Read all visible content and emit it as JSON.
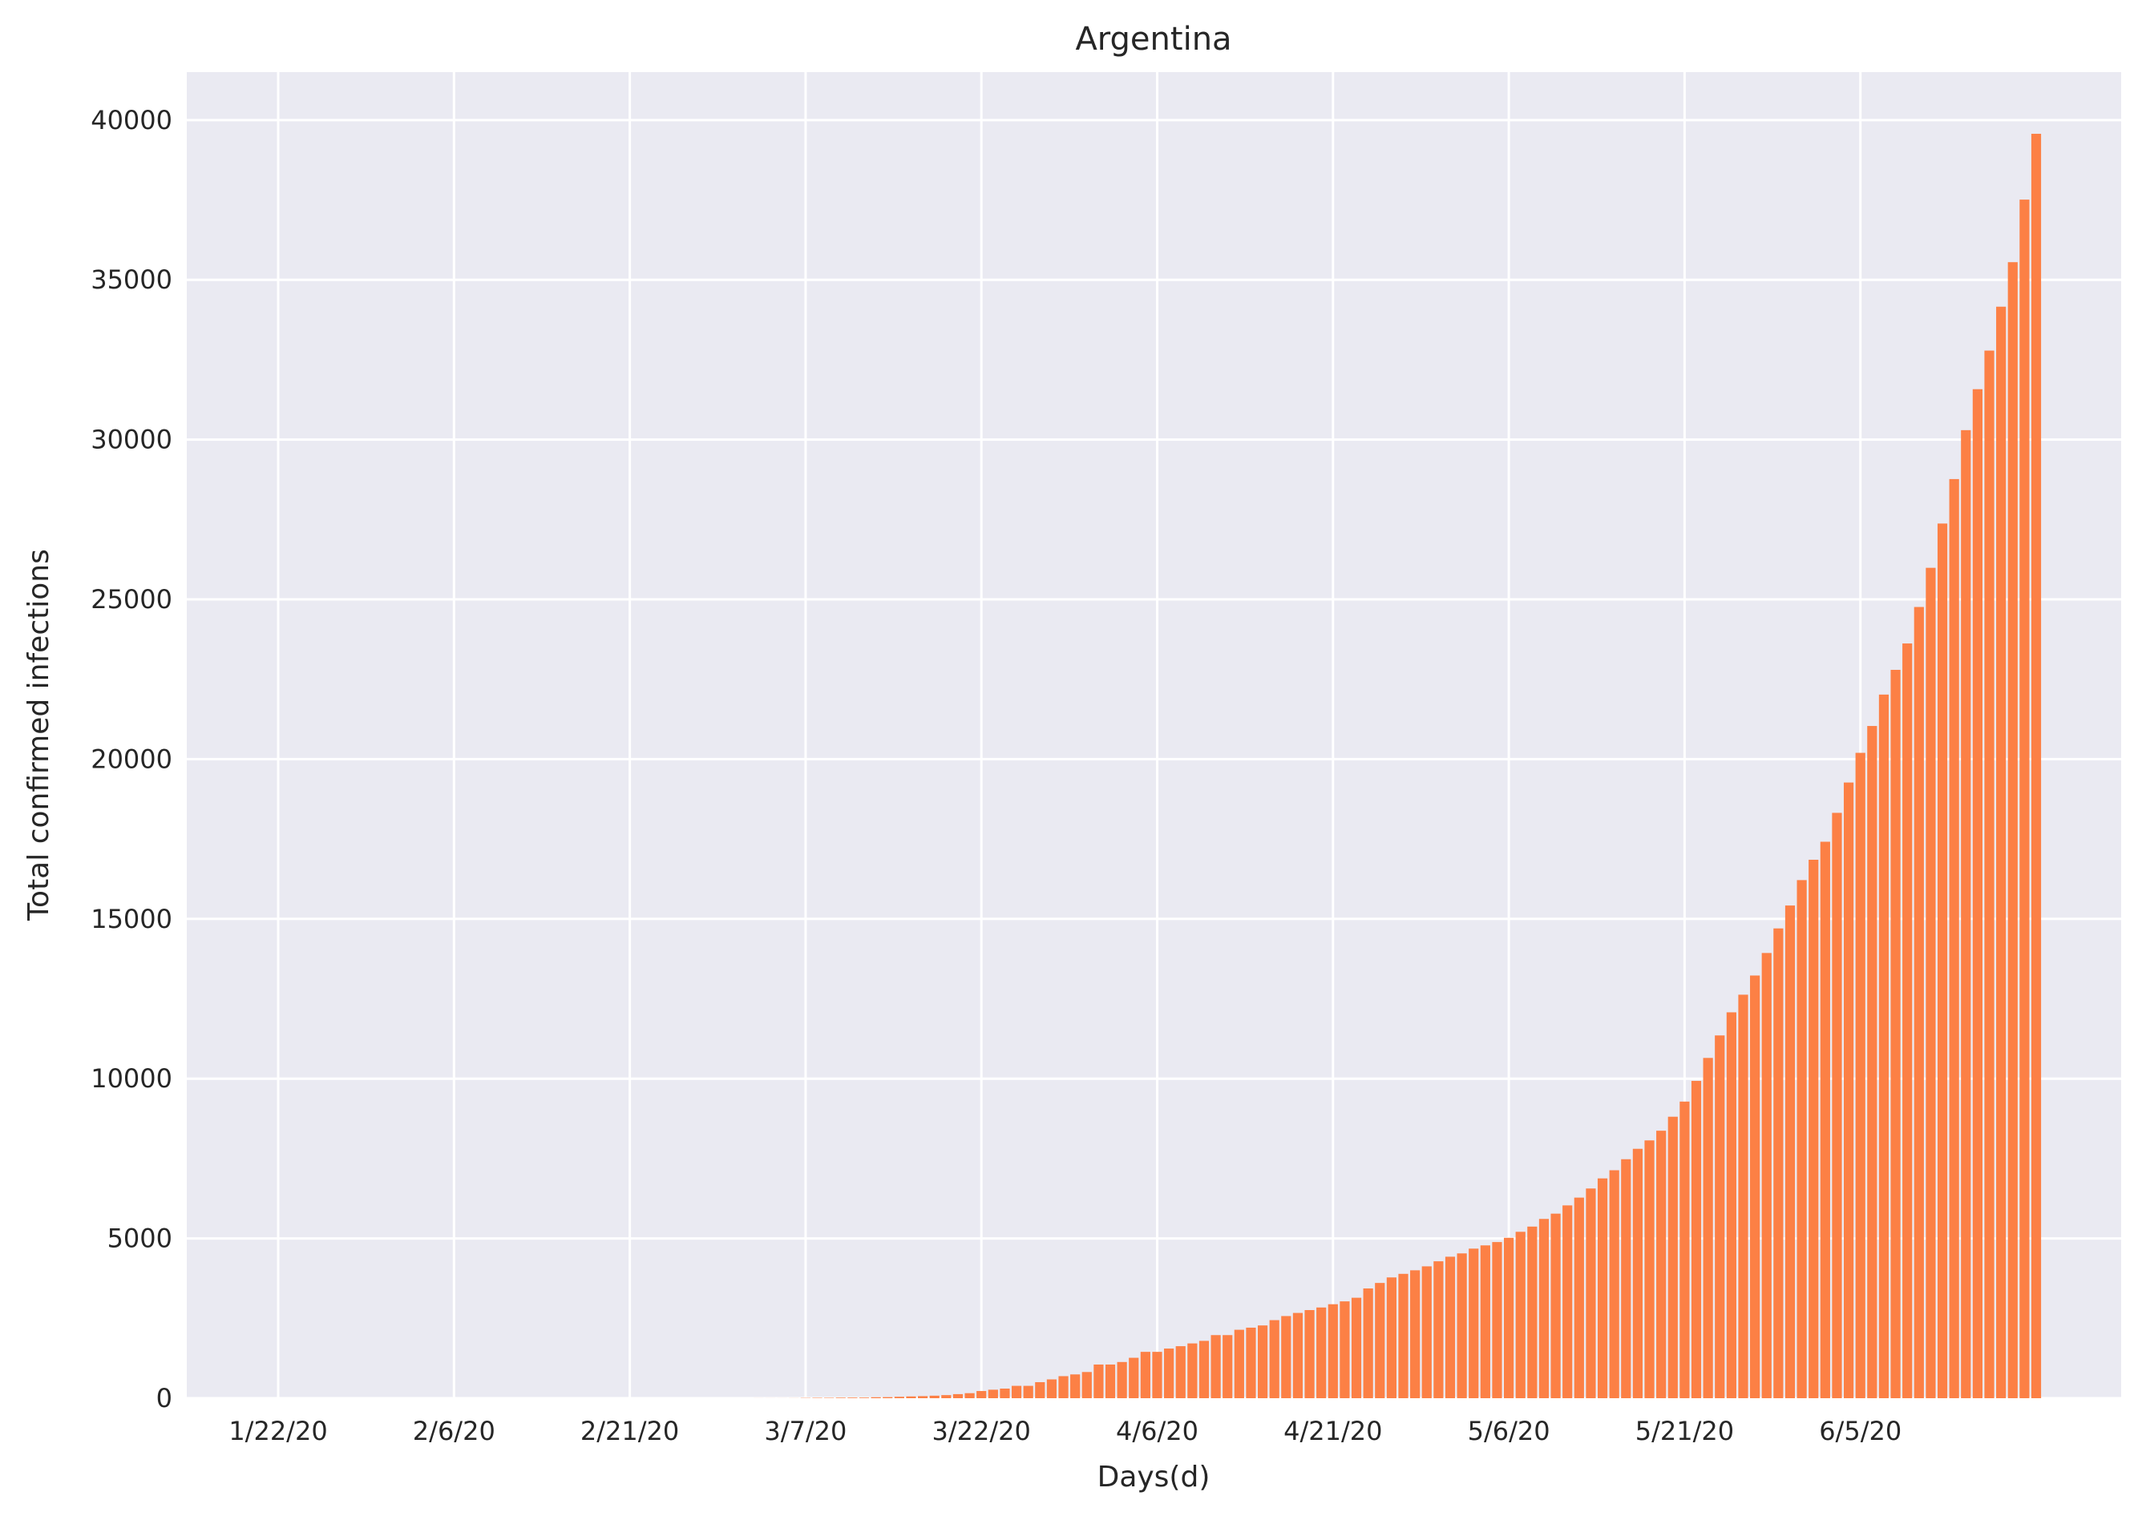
{
  "chart_data": {
    "type": "bar",
    "title": "Argentina",
    "xlabel": "Days(d)",
    "ylabel": "Total confirmed infections",
    "x_start": "1/22/20",
    "x_end": "6/14/20",
    "x_ticks": [
      "1/22/20",
      "2/6/20",
      "2/21/20",
      "3/7/20",
      "3/22/20",
      "4/6/20",
      "4/21/20",
      "5/6/20",
      "5/21/20",
      "6/5/20"
    ],
    "y_ticks": [
      0,
      5000,
      10000,
      15000,
      20000,
      25000,
      30000,
      35000,
      40000
    ],
    "ylim": [
      0,
      41500
    ],
    "grid": true,
    "bar_color": "#fc8045",
    "background_color": "#eaeaf2",
    "grid_color": "#ffffff",
    "values": [
      0,
      0,
      0,
      0,
      0,
      0,
      0,
      0,
      0,
      0,
      0,
      0,
      0,
      0,
      0,
      0,
      0,
      0,
      0,
      0,
      0,
      0,
      0,
      0,
      0,
      0,
      0,
      0,
      0,
      0,
      0,
      0,
      0,
      0,
      0,
      0,
      0,
      0,
      0,
      0,
      0,
      1,
      1,
      1,
      2,
      8,
      12,
      12,
      17,
      19,
      19,
      31,
      34,
      45,
      56,
      65,
      79,
      97,
      128,
      158,
      225,
      266,
      301,
      387,
      387,
      502,
      589,
      690,
      745,
      820,
      1054,
      1054,
      1133,
      1265,
      1451,
      1451,
      1554,
      1628,
      1715,
      1795,
      1975,
      1975,
      2142,
      2208,
      2277,
      2443,
      2571,
      2669,
      2758,
      2839,
      2941,
      3031,
      3144,
      3435,
      3607,
      3780,
      3892,
      4003,
      4127,
      4285,
      4428,
      4532,
      4681,
      4783,
      4887,
      5020,
      5208,
      5371,
      5611,
      5776,
      6034,
      6278,
      6563,
      6879,
      7134,
      7479,
      7805,
      8068,
      8371,
      8809,
      9283,
      9931,
      10649,
      11353,
      12076,
      12628,
      13228,
      13933,
      14702,
      15419,
      16214,
      16851,
      17415,
      18319,
      19268,
      20197,
      21037,
      22020,
      22794,
      23620,
      24761,
      25987,
      27373,
      28764,
      30295,
      31577,
      32785,
      34159,
      35552,
      37510,
      39570
    ]
  }
}
